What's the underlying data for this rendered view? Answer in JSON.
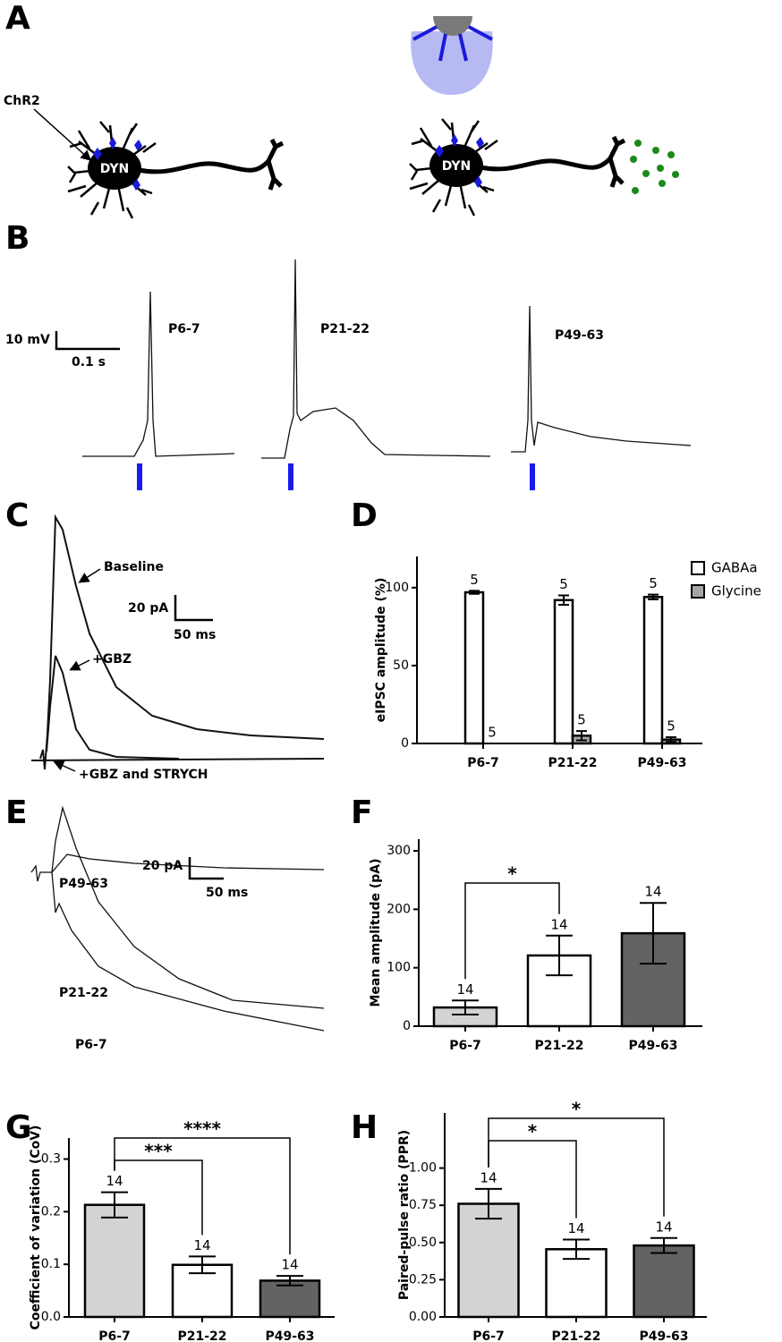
{
  "panel_labels": [
    "A",
    "B",
    "C",
    "D",
    "E",
    "F",
    "G",
    "H"
  ],
  "panel_a": {
    "opsin": "ChR2",
    "neuron_labels": [
      "DYN",
      "DYN"
    ]
  },
  "panel_b": {
    "scale_voltage": "10 mV",
    "scale_time": "0.1 s",
    "traces": [
      "P6-7",
      "P21-22",
      "P49-63"
    ]
  },
  "panel_c": {
    "traces": [
      "Baseline",
      "+GBZ",
      "+GBZ and STRYCH"
    ],
    "scale_current": "20 pA",
    "scale_time": "50 ms"
  },
  "panel_e": {
    "traces": [
      "P49-63",
      "P21-22",
      "P6-7"
    ],
    "scale_current": "20 pA",
    "scale_time": "50 ms"
  },
  "chart_data": [
    {
      "type": "bar",
      "ylabel": "eIPSC amplitude (%)",
      "categories": [
        "P6-7",
        "P21-22",
        "P49-63"
      ],
      "series": [
        {
          "name": "GABAa",
          "color": "#ffffff",
          "values": [
            97,
            92,
            94
          ],
          "errors": [
            1,
            3,
            1.5
          ],
          "n": [
            5,
            5,
            5
          ]
        },
        {
          "name": "Glycine",
          "color": "#a6a6a6",
          "values": [
            0,
            5,
            2.5
          ],
          "errors": [
            0,
            3,
            1.5
          ],
          "n": [
            5,
            5,
            5
          ]
        }
      ],
      "ylim": [
        0,
        120
      ],
      "yticks": [
        0,
        50,
        100
      ],
      "legend": "upper right"
    },
    {
      "type": "bar",
      "ylabel": "Mean amplitude (pA)",
      "categories": [
        "P6-7",
        "P21-22",
        "P49-63"
      ],
      "series": [
        {
          "colors": [
            "#d3d3d3",
            "#ffffff",
            "#636363"
          ],
          "values": [
            32,
            121,
            159
          ],
          "errors": [
            12,
            34,
            52
          ],
          "n": [
            14,
            14,
            14
          ]
        }
      ],
      "ylim": [
        0,
        320
      ],
      "yticks": [
        0,
        100,
        200,
        300
      ],
      "significance": [
        {
          "from": 0,
          "to": 1,
          "label": "*"
        }
      ]
    },
    {
      "type": "bar",
      "ylabel": "Coefficient of variation (CoV)",
      "categories": [
        "P6-7",
        "P21-22",
        "P49-63"
      ],
      "series": [
        {
          "colors": [
            "#d3d3d3",
            "#ffffff",
            "#636363"
          ],
          "values": [
            0.213,
            0.099,
            0.069
          ],
          "errors": [
            0.024,
            0.016,
            0.009
          ],
          "n": [
            14,
            14,
            14
          ]
        }
      ],
      "ylim": [
        0,
        0.34
      ],
      "yticks": [
        {
          "value": 0,
          "label": "0.0"
        },
        0.1,
        0.2,
        0.3
      ],
      "significance": [
        {
          "from": 0,
          "to": 1,
          "label": "***"
        },
        {
          "from": 0,
          "to": 2,
          "label": "****"
        }
      ]
    },
    {
      "type": "bar",
      "ylabel": "Paired-pulse ratio (PPR)",
      "categories": [
        "P6-7",
        "P21-22",
        "P49-63"
      ],
      "series": [
        {
          "colors": [
            "#d3d3d3",
            "#ffffff",
            "#636363"
          ],
          "values": [
            0.76,
            0.455,
            0.48
          ],
          "errors": [
            0.1,
            0.065,
            0.05
          ],
          "n": [
            14,
            14,
            14
          ]
        }
      ],
      "ylim": [
        0,
        1.37
      ],
      "yticks": [
        {
          "value": 0,
          "label": "0.00"
        },
        0.25,
        {
          "value": 0.5,
          "label": "0.50"
        },
        0.75,
        {
          "value": 1,
          "label": "1.00"
        }
      ],
      "significance": [
        {
          "from": 0,
          "to": 1,
          "label": "*"
        },
        {
          "from": 0,
          "to": 2,
          "label": "*"
        }
      ]
    }
  ]
}
